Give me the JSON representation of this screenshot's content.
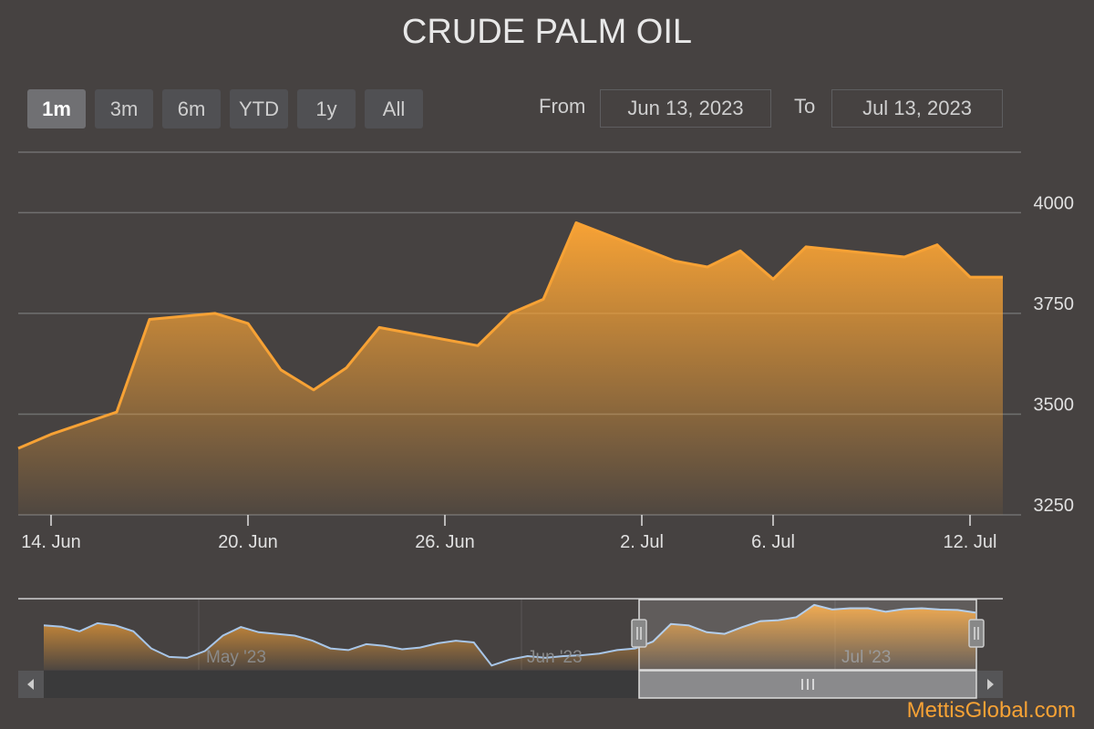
{
  "chart_data": {
    "type": "area",
    "title": "CRUDE PALM OIL",
    "range_selector": {
      "buttons": [
        "1m",
        "3m",
        "6m",
        "YTD",
        "1y",
        "All"
      ],
      "selected": "1m"
    },
    "date_range": {
      "from_label": "From",
      "from": "Jun 13, 2023",
      "to_label": "To",
      "to": "Jul 13, 2023"
    },
    "ylim": [
      3250,
      4150
    ],
    "y_ticks": [
      3250,
      3500,
      3750,
      4000
    ],
    "x_range": [
      "2023-06-13",
      "2023-07-13"
    ],
    "x_tick_dates": [
      "2023-06-14",
      "2023-06-20",
      "2023-06-26",
      "2023-07-02",
      "2023-07-06",
      "2023-07-12"
    ],
    "x_tick_labels": [
      "14. Jun",
      "20. Jun",
      "26. Jun",
      "2. Jul",
      "6. Jul",
      "12. Jul"
    ],
    "series": [
      {
        "x": [
          "2023-06-13",
          "2023-06-14",
          "2023-06-16",
          "2023-06-17",
          "2023-06-19",
          "2023-06-20",
          "2023-06-21",
          "2023-06-22",
          "2023-06-23",
          "2023-06-24",
          "2023-06-27",
          "2023-06-28",
          "2023-06-29",
          "2023-06-30",
          "2023-07-03",
          "2023-07-04",
          "2023-07-05",
          "2023-07-06",
          "2023-07-07",
          "2023-07-10",
          "2023-07-11",
          "2023-07-12",
          "2023-07-13"
        ],
        "values": [
          3415,
          3450,
          3505,
          3735,
          3750,
          3725,
          3610,
          3560,
          3615,
          3715,
          3670,
          3750,
          3785,
          3975,
          3880,
          3865,
          3905,
          3835,
          3915,
          3890,
          3920,
          3840,
          3840
        ]
      }
    ],
    "navigator": {
      "x_labels": [
        "May '23",
        "Jun '23",
        "Jul '23"
      ],
      "values": [
        3720,
        3705,
        3650,
        3745,
        3720,
        3650,
        3450,
        3350,
        3340,
        3420,
        3600,
        3700,
        3640,
        3620,
        3600,
        3540,
        3450,
        3430,
        3500,
        3480,
        3440,
        3460,
        3510,
        3540,
        3520,
        3250,
        3320,
        3360,
        3340,
        3360,
        3370,
        3390,
        3430,
        3450,
        3530,
        3735,
        3720,
        3640,
        3620,
        3700,
        3770,
        3780,
        3815,
        3960,
        3905,
        3920,
        3920,
        3880,
        3910,
        3920,
        3905,
        3900,
        3870
      ]
    },
    "line_color": "#f7a235",
    "navigator_line_color": "#a8c6e8"
  },
  "branding": "MettisGlobal.com"
}
